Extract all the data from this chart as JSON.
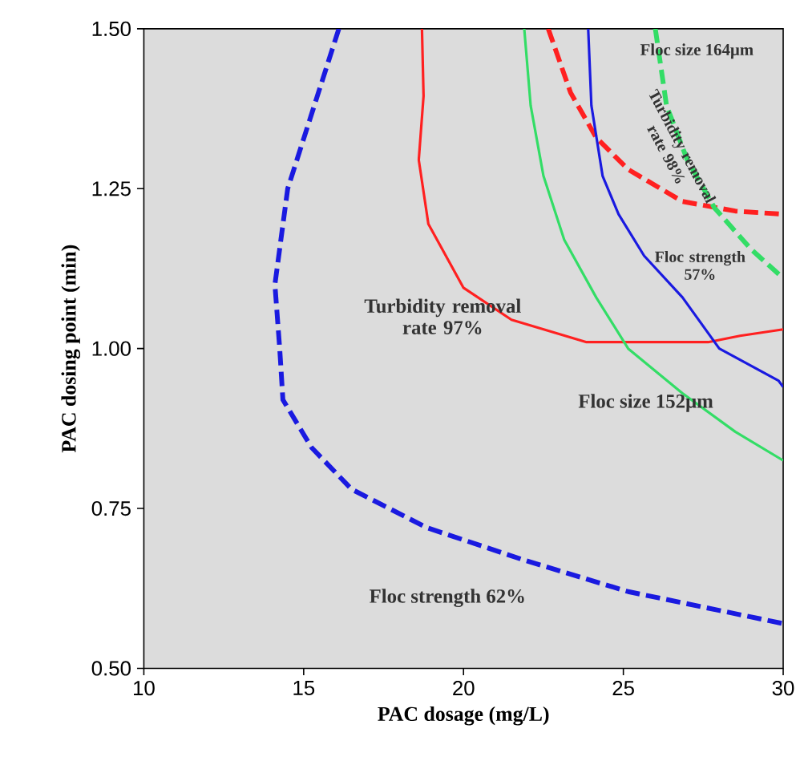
{
  "chart_data": {
    "type": "line",
    "xlabel": "PAC dosage (mg/L)",
    "ylabel": "PAC dosing point (min)",
    "xlim": [
      10,
      30
    ],
    "xticks": [
      10,
      15,
      20,
      25,
      30
    ],
    "ylim": [
      0.5,
      1.5
    ],
    "yticks": [
      {
        "value": 0.5,
        "label": "0.50"
      },
      {
        "value": 0.75,
        "label": "0.75"
      },
      {
        "value": 1.0,
        "label": "1.00"
      },
      {
        "value": 1.25,
        "label": "1.25"
      },
      {
        "value": 1.5,
        "label": "1.50"
      }
    ],
    "grid": false,
    "marker": "none",
    "series": [
      {
        "color": "#1a1ae0",
        "line_style": "dashed",
        "x": [
          16.1,
          14.5,
          14.1,
          14.25,
          14.35,
          15.25,
          16.5,
          18.85,
          21.85,
          25.15,
          30
        ],
        "values": [
          1.5,
          1.25,
          1.1,
          1.0,
          0.92,
          0.845,
          0.78,
          0.72,
          0.67,
          0.62,
          0.57
        ]
      },
      {
        "color": "#ff2020",
        "line_style": "solid",
        "x": [
          18.7,
          18.75,
          18.6,
          18.9,
          20.0,
          21.5,
          23.85,
          27.65,
          28.65,
          30
        ],
        "values": [
          1.5,
          1.395,
          1.295,
          1.195,
          1.095,
          1.045,
          1.01,
          1.01,
          1.02,
          1.03
        ]
      },
      {
        "color": "#ff2020",
        "line_style": "dashed",
        "x": [
          22.65,
          23.35,
          24.15,
          25.15,
          26.85,
          28.5,
          30
        ],
        "values": [
          1.5,
          1.4,
          1.33,
          1.28,
          1.23,
          1.215,
          1.21
        ]
      },
      {
        "color": "#33dd66",
        "line_style": "solid",
        "x": [
          21.9,
          22.1,
          22.5,
          23.15,
          24.15,
          25.15,
          26.85,
          28.5,
          30
        ],
        "values": [
          1.5,
          1.38,
          1.27,
          1.17,
          1.08,
          1.0,
          0.93,
          0.87,
          0.825
        ]
      },
      {
        "color": "#1a1ae0",
        "line_style": "solid",
        "x": [
          23.9,
          24.0,
          24.35,
          24.85,
          25.65,
          26.85,
          28.0,
          29.85,
          30
        ],
        "values": [
          1.5,
          1.38,
          1.27,
          1.21,
          1.145,
          1.08,
          1.0,
          0.95,
          0.94
        ]
      },
      {
        "color": "#33dd66",
        "line_style": "dashed",
        "x": [
          26.0,
          26.35,
          27.0,
          27.85,
          29.0,
          30
        ],
        "values": [
          1.5,
          1.38,
          1.295,
          1.22,
          1.155,
          1.11
        ]
      }
    ],
    "annotations": [
      "Floc size 164μm",
      "Turbidity removal rate 98%",
      "Floc strength 57%",
      "Turbidity removal rate 97%",
      "Floc size 152μm",
      "Floc strength 62%"
    ]
  }
}
